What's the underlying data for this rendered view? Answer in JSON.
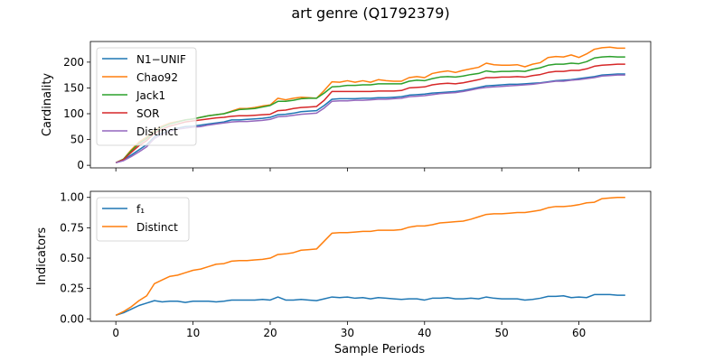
{
  "figure_title": "art genre (Q1792379)",
  "colors": {
    "blue": "#1f77b4",
    "orange": "#ff7f0e",
    "green": "#2ca02c",
    "red": "#d62728",
    "purple": "#9467bd"
  },
  "chart_data": [
    {
      "type": "line",
      "title": "",
      "xlabel": "",
      "ylabel": "Cardinality",
      "xlim": [
        -3.3,
        69.3
      ],
      "ylim": [
        -5,
        240
      ],
      "xticks": [
        0,
        10,
        20,
        30,
        40,
        50,
        60
      ],
      "xtick_labels": [
        "",
        "",
        "",
        "",
        "",
        "",
        ""
      ],
      "yticks": [
        0,
        50,
        100,
        150,
        200
      ],
      "ytick_labels": [
        "0",
        "50",
        "100",
        "150",
        "200"
      ],
      "grid": false,
      "legend_position": "upper left",
      "x": [
        0,
        1,
        2,
        3,
        4,
        5,
        6,
        7,
        8,
        9,
        10,
        11,
        12,
        13,
        14,
        15,
        16,
        17,
        18,
        19,
        20,
        21,
        22,
        23,
        24,
        25,
        26,
        27,
        28,
        29,
        30,
        31,
        32,
        33,
        34,
        35,
        36,
        37,
        38,
        39,
        40,
        41,
        42,
        43,
        44,
        45,
        46,
        47,
        48,
        49,
        50,
        51,
        52,
        53,
        54,
        55,
        56,
        57,
        58,
        59,
        60,
        61,
        62,
        63,
        64,
        65,
        66
      ],
      "series": [
        {
          "name": "N1−UNIF",
          "color": "#1f77b4",
          "values": [
            5,
            10,
            20,
            30,
            40,
            55,
            62,
            68,
            72,
            75,
            76,
            78,
            80,
            82,
            84,
            88,
            88,
            89,
            90,
            91,
            93,
            98,
            99,
            101,
            104,
            105,
            106,
            116,
            128,
            129,
            129,
            129,
            130,
            130,
            131,
            131,
            132,
            133,
            136,
            137,
            138,
            140,
            141,
            142,
            143,
            145,
            148,
            151,
            154,
            155,
            156,
            157,
            157,
            158,
            159,
            160,
            162,
            164,
            165,
            166,
            168,
            170,
            172,
            175,
            176,
            177,
            177
          ]
        },
        {
          "name": "Chao92",
          "color": "#ff7f0e",
          "values": [
            5,
            12,
            30,
            45,
            55,
            68,
            76,
            82,
            85,
            88,
            90,
            93,
            96,
            98,
            100,
            105,
            110,
            110,
            112,
            115,
            117,
            130,
            127,
            130,
            132,
            131,
            130,
            145,
            162,
            161,
            164,
            161,
            164,
            161,
            166,
            164,
            163,
            163,
            170,
            172,
            170,
            178,
            181,
            183,
            180,
            184,
            187,
            190,
            198,
            195,
            194,
            194,
            195,
            191,
            196,
            199,
            209,
            211,
            210,
            214,
            209,
            216,
            225,
            228,
            229,
            227,
            227
          ]
        },
        {
          "name": "Jack1",
          "color": "#2ca02c",
          "values": [
            5,
            12,
            28,
            42,
            52,
            65,
            74,
            80,
            84,
            88,
            90,
            93,
            96,
            98,
            100,
            104,
            108,
            109,
            110,
            113,
            116,
            124,
            124,
            126,
            129,
            130,
            130,
            140,
            152,
            153,
            155,
            155,
            156,
            156,
            158,
            158,
            158,
            158,
            163,
            165,
            164,
            168,
            171,
            172,
            171,
            173,
            176,
            178,
            183,
            181,
            182,
            182,
            183,
            182,
            186,
            189,
            194,
            196,
            196,
            198,
            197,
            201,
            208,
            210,
            211,
            210,
            210
          ]
        },
        {
          "name": "SOR",
          "color": "#d62728",
          "values": [
            5,
            11,
            25,
            38,
            48,
            62,
            70,
            76,
            80,
            84,
            86,
            88,
            90,
            92,
            93,
            95,
            96,
            96,
            97,
            98,
            99,
            106,
            107,
            110,
            112,
            113,
            114,
            126,
            143,
            143,
            143,
            143,
            143,
            143,
            144,
            144,
            144,
            145,
            150,
            151,
            152,
            156,
            158,
            159,
            158,
            160,
            163,
            166,
            170,
            170,
            171,
            171,
            172,
            171,
            174,
            176,
            180,
            182,
            182,
            184,
            184,
            187,
            192,
            194,
            195,
            196,
            196
          ]
        },
        {
          "name": "Distinct",
          "color": "#9467bd",
          "values": [
            5,
            9,
            17,
            26,
            36,
            52,
            60,
            66,
            70,
            72,
            74,
            75,
            78,
            80,
            82,
            84,
            85,
            85,
            86,
            87,
            89,
            94,
            95,
            97,
            99,
            100,
            101,
            111,
            124,
            125,
            125,
            126,
            126,
            127,
            128,
            128,
            129,
            130,
            133,
            134,
            135,
            137,
            139,
            140,
            141,
            143,
            146,
            149,
            151,
            152,
            153,
            154,
            155,
            156,
            157,
            159,
            161,
            163,
            163,
            165,
            166,
            168,
            170,
            173,
            174,
            175,
            175
          ]
        }
      ]
    },
    {
      "type": "line",
      "title": "",
      "xlabel": "Sample Periods",
      "ylabel": "Indicators",
      "xlim": [
        -3.3,
        69.3
      ],
      "ylim": [
        -0.02,
        1.05
      ],
      "xticks": [
        0,
        10,
        20,
        30,
        40,
        50,
        60
      ],
      "xtick_labels": [
        "0",
        "10",
        "20",
        "30",
        "40",
        "50",
        "60"
      ],
      "yticks": [
        0,
        0.25,
        0.5,
        0.75,
        1.0
      ],
      "ytick_labels": [
        "0.00",
        "0.25",
        "0.50",
        "0.75",
        "1.00"
      ],
      "grid": false,
      "legend_position": "upper left",
      "x": [
        0,
        1,
        2,
        3,
        4,
        5,
        6,
        7,
        8,
        9,
        10,
        11,
        12,
        13,
        14,
        15,
        16,
        17,
        18,
        19,
        20,
        21,
        22,
        23,
        24,
        25,
        26,
        27,
        28,
        29,
        30,
        31,
        32,
        33,
        34,
        35,
        36,
        37,
        38,
        39,
        40,
        41,
        42,
        43,
        44,
        45,
        46,
        47,
        48,
        49,
        50,
        51,
        52,
        53,
        54,
        55,
        56,
        57,
        58,
        59,
        60,
        61,
        62,
        63,
        64,
        65,
        66
      ],
      "series": [
        {
          "name": "f1",
          "color": "#1f77b4",
          "values": [
            0.03,
            0.05,
            0.08,
            0.11,
            0.13,
            0.15,
            0.14,
            0.145,
            0.145,
            0.135,
            0.145,
            0.145,
            0.145,
            0.14,
            0.145,
            0.155,
            0.155,
            0.155,
            0.155,
            0.16,
            0.155,
            0.18,
            0.155,
            0.155,
            0.16,
            0.155,
            0.15,
            0.165,
            0.18,
            0.175,
            0.18,
            0.17,
            0.175,
            0.165,
            0.175,
            0.17,
            0.165,
            0.16,
            0.165,
            0.165,
            0.155,
            0.17,
            0.17,
            0.175,
            0.165,
            0.165,
            0.17,
            0.165,
            0.18,
            0.17,
            0.165,
            0.165,
            0.165,
            0.155,
            0.16,
            0.17,
            0.185,
            0.185,
            0.19,
            0.175,
            0.18,
            0.175,
            0.2,
            0.2,
            0.2,
            0.195,
            0.195
          ]
        },
        {
          "name": "Distinct",
          "color": "#ff7f0e",
          "values": [
            0.03,
            0.06,
            0.1,
            0.15,
            0.19,
            0.29,
            0.32,
            0.35,
            0.36,
            0.38,
            0.4,
            0.41,
            0.43,
            0.45,
            0.455,
            0.475,
            0.48,
            0.48,
            0.485,
            0.49,
            0.5,
            0.53,
            0.535,
            0.545,
            0.565,
            0.57,
            0.575,
            0.64,
            0.705,
            0.71,
            0.71,
            0.715,
            0.72,
            0.72,
            0.73,
            0.73,
            0.73,
            0.735,
            0.755,
            0.765,
            0.765,
            0.775,
            0.79,
            0.795,
            0.8,
            0.805,
            0.82,
            0.84,
            0.86,
            0.865,
            0.865,
            0.87,
            0.875,
            0.875,
            0.885,
            0.895,
            0.915,
            0.925,
            0.925,
            0.93,
            0.94,
            0.955,
            0.96,
            0.99,
            0.995,
            1.0,
            1.0
          ]
        }
      ],
      "legend_labels": [
        "f₁",
        "Distinct"
      ]
    }
  ]
}
